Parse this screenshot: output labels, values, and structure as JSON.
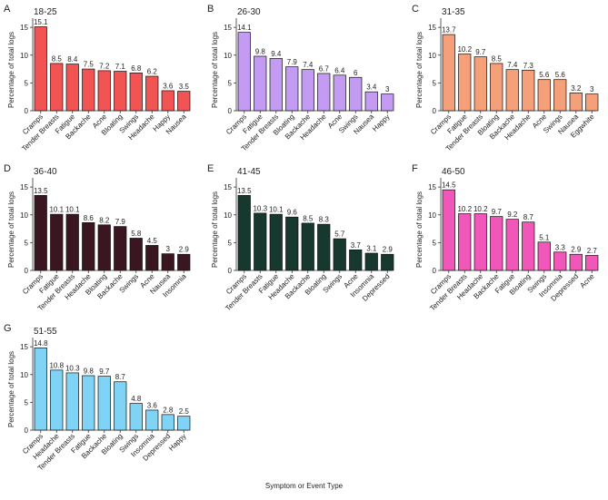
{
  "figure": {
    "xlabel": "Symptom or Event Type",
    "ylabel": "Percentage of total logs"
  },
  "chart_data": [
    {
      "type": "bar",
      "letter": "A",
      "title": "18-25",
      "color": "#F25454",
      "categories": [
        "Cramps",
        "Tender Breasts",
        "Fatigue",
        "Backache",
        "Acne",
        "Bloating",
        "Swings",
        "Headache",
        "Happy",
        "Nausea"
      ],
      "values": [
        15.1,
        8.5,
        8.4,
        7.5,
        7.2,
        7.1,
        6.8,
        6.2,
        3.6,
        3.5
      ],
      "ylabel": "Percentage of total logs",
      "ylim": [
        0,
        16
      ],
      "yticks": [
        0,
        5,
        10,
        15
      ]
    },
    {
      "type": "bar",
      "letter": "B",
      "title": "26-30",
      "color": "#C49BF2",
      "categories": [
        "Cramps",
        "Fatigue",
        "Tender Breasts",
        "Bloating",
        "Backache",
        "Headache",
        "Acne",
        "Swings",
        "Nausea",
        "Happy"
      ],
      "values": [
        14.1,
        9.8,
        9.4,
        7.9,
        7.4,
        6.7,
        6.4,
        6,
        3.4,
        3
      ],
      "ylabel": "Percentage of total logs",
      "ylim": [
        0,
        16
      ],
      "yticks": [
        0,
        5,
        10,
        15
      ]
    },
    {
      "type": "bar",
      "letter": "C",
      "title": "31-35",
      "color": "#F6A07A",
      "categories": [
        "Cramps",
        "Fatigue",
        "Tender Breasts",
        "Bloating",
        "Backache",
        "Headache",
        "Acne",
        "Swings",
        "Nausea",
        "Eggwhite"
      ],
      "values": [
        13.7,
        10.2,
        9.7,
        8.5,
        7.4,
        7.3,
        5.6,
        5.6,
        3.2,
        3
      ],
      "ylabel": "Percentage of total logs",
      "ylim": [
        0,
        16
      ],
      "yticks": [
        0,
        5,
        10,
        15
      ]
    },
    {
      "type": "bar",
      "letter": "D",
      "title": "36-40",
      "color": "#3A1620",
      "categories": [
        "Cramps",
        "Fatigue",
        "Tender Breasts",
        "Headache",
        "Bloating",
        "Backache",
        "Swings",
        "Acne",
        "Nausea",
        "Insomnia"
      ],
      "values": [
        13.5,
        10.1,
        10.1,
        8.6,
        8.2,
        7.9,
        5.8,
        4.5,
        3,
        2.9
      ],
      "ylabel": "Percentage of total logs",
      "ylim": [
        0,
        16
      ],
      "yticks": [
        0,
        5,
        10,
        15
      ]
    },
    {
      "type": "bar",
      "letter": "E",
      "title": "41-45",
      "color": "#17382E",
      "categories": [
        "Cramps",
        "Tender Breasts",
        "Fatigue",
        "Headache",
        "Backache",
        "Bloating",
        "Swings",
        "Acne",
        "Insomnia",
        "Depressed"
      ],
      "values": [
        13.5,
        10.3,
        10.1,
        9.6,
        8.5,
        8.3,
        5.7,
        3.7,
        3.1,
        2.9
      ],
      "ylabel": "Percentage of total logs",
      "ylim": [
        0,
        16
      ],
      "yticks": [
        0,
        5,
        10,
        15
      ]
    },
    {
      "type": "bar",
      "letter": "F",
      "title": "46-50",
      "color": "#F057B8",
      "categories": [
        "Cramps",
        "Tender Breasts",
        "Headache",
        "Backache",
        "Fatigue",
        "Bloating",
        "Swings",
        "Insomnia",
        "Depressed",
        "Acne"
      ],
      "values": [
        14.5,
        10.2,
        10.2,
        9.7,
        9.2,
        8.7,
        5.1,
        3.3,
        2.9,
        2.7
      ],
      "ylabel": "Percentage of total logs",
      "ylim": [
        0,
        16
      ],
      "yticks": [
        0,
        5,
        10,
        15
      ]
    },
    {
      "type": "bar",
      "letter": "G",
      "title": "51-55",
      "color": "#7FD3F5",
      "categories": [
        "Cramps",
        "Headache",
        "Tender Breasts",
        "Fatigue",
        "Backache",
        "Bloating",
        "Swings",
        "Insomnia",
        "Depressed",
        "Happy"
      ],
      "values": [
        14.8,
        10.8,
        10.3,
        9.8,
        9.7,
        8.7,
        4.8,
        3.6,
        2.8,
        2.5
      ],
      "ylabel": "Percentage of total logs",
      "ylim": [
        0,
        16
      ],
      "yticks": [
        0,
        5,
        10,
        15
      ]
    }
  ]
}
